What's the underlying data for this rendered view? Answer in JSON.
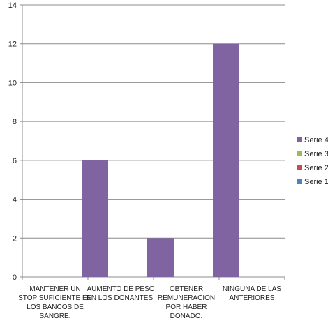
{
  "chart_data": {
    "type": "bar",
    "categories": [
      [
        "MANTENER UN",
        "STOP SUFICIENTE EN",
        "LOS BANCOS DE",
        "SANGRE."
      ],
      [
        "AUMENTO DE PESO",
        "EN LOS  DONANTES."
      ],
      [
        "OBTENER",
        "REMUNERACION",
        "POR HABER",
        "DONADO."
      ],
      [
        "NINGUNA DE LAS",
        "ANTERIORES"
      ]
    ],
    "series": [
      {
        "name": "Serie 1",
        "color": "#4f81bd",
        "values": [
          0,
          0,
          0,
          0
        ]
      },
      {
        "name": "Serie 2",
        "color": "#c0504d",
        "values": [
          0,
          0,
          0,
          0
        ]
      },
      {
        "name": "Serie 3",
        "color": "#9bbb59",
        "values": [
          0,
          0,
          0,
          0
        ]
      },
      {
        "name": "Serie 4",
        "color": "#8064a2",
        "values": [
          6,
          2,
          12,
          0
        ]
      }
    ],
    "ylim": [
      0,
      14
    ],
    "yticks": [
      0,
      2,
      4,
      6,
      8,
      10,
      12,
      14
    ],
    "grid": true,
    "legend_position": "right",
    "legend_order": [
      "Serie 4",
      "Serie 3",
      "Serie 2",
      "Serie 1"
    ]
  }
}
